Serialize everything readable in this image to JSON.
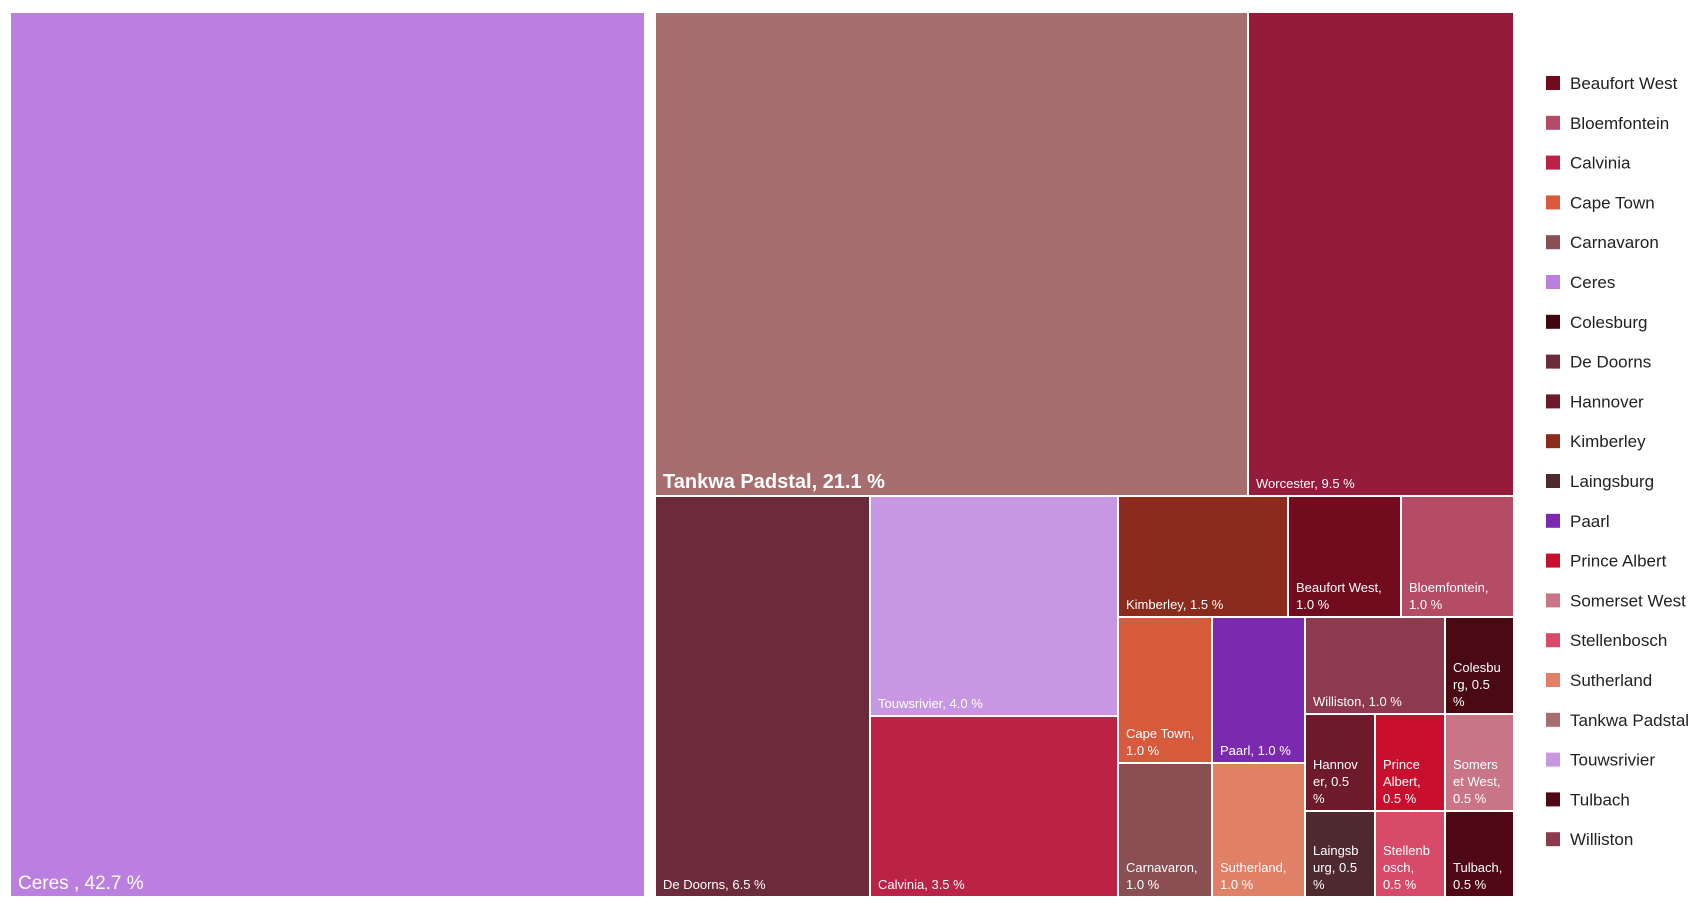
{
  "chart_data": {
    "type": "treemap",
    "title": "",
    "unit": "%",
    "items": [
      {
        "name": "Ceres",
        "value": 42.7,
        "label": [
          "Ceres , 42.7 %"
        ],
        "color": "#BB7FE0"
      },
      {
        "name": "Tankwa Padstal",
        "value": 21.1,
        "label": [
          "Tankwa Padstal, 21.1 %"
        ],
        "color": "#A66E6E"
      },
      {
        "name": "Worcester",
        "value": 9.5,
        "label": [
          "Worcester, 9.5 %"
        ],
        "color": "#941B3A"
      },
      {
        "name": "De Doorns",
        "value": 6.5,
        "label": [
          "De Doorns, 6.5 %"
        ],
        "color": "#6B2B3B"
      },
      {
        "name": "Touwsrivier",
        "value": 4.0,
        "label": [
          "Touwsrivier, 4.0 %"
        ],
        "color": "#C897E2"
      },
      {
        "name": "Calvinia",
        "value": 3.5,
        "label": [
          "Calvinia, 3.5 %"
        ],
        "color": "#BA2246"
      },
      {
        "name": "Kimberley",
        "value": 1.5,
        "label": [
          "Kimberley, 1.5 %"
        ],
        "color": "#8A2B1E"
      },
      {
        "name": "Beaufort West",
        "value": 1.0,
        "label": [
          "Beaufort West,",
          "1.0 %"
        ],
        "color": "#710C1E"
      },
      {
        "name": "Bloemfontein",
        "value": 1.0,
        "label": [
          "Bloemfontein,",
          "1.0 %"
        ],
        "color": "#B44C66"
      },
      {
        "name": "Cape Town",
        "value": 1.0,
        "label": [
          "Cape Town,",
          "1.0 %"
        ],
        "color": "#D85A3C"
      },
      {
        "name": "Paarl",
        "value": 1.0,
        "label": [
          "Paarl, 1.0 %"
        ],
        "color": "#7B2AB0"
      },
      {
        "name": "Williston",
        "value": 1.0,
        "label": [
          "Williston, 1.0 %"
        ],
        "color": "#8E3A4E"
      },
      {
        "name": "Colesburg",
        "value": 0.5,
        "label": [
          "Colesbu",
          "rg, 0.5",
          "%"
        ],
        "color": "#4A0A14"
      },
      {
        "name": "Carnavaron",
        "value": 1.0,
        "label": [
          "Carnavaron,",
          "1.0 %"
        ],
        "color": "#8A4F52"
      },
      {
        "name": "Sutherland",
        "value": 1.0,
        "label": [
          "Sutherland,",
          "1.0 %"
        ],
        "color": "#E08066"
      },
      {
        "name": "Hannover",
        "value": 0.5,
        "label": [
          "Hannov",
          "er, 0.5",
          "%"
        ],
        "color": "#6D1A2A"
      },
      {
        "name": "Prince Albert",
        "value": 0.5,
        "label": [
          "Prince",
          "Albert,",
          "0.5 %"
        ],
        "color": "#C8102E"
      },
      {
        "name": "Somerset West",
        "value": 0.5,
        "label": [
          "Somers",
          "et West,",
          "0.5 %"
        ],
        "color": "#C97585"
      },
      {
        "name": "Laingsburg",
        "value": 0.5,
        "label": [
          "Laingsb",
          "urg, 0.5",
          "%"
        ],
        "color": "#4E2A30"
      },
      {
        "name": "Stellenbosch",
        "value": 0.5,
        "label": [
          "Stellenb",
          "osch,",
          "0.5 %"
        ],
        "color": "#D84A6A"
      },
      {
        "name": "Tulbach",
        "value": 0.5,
        "label": [
          "Tulbach,",
          "0.5 %"
        ],
        "color": "#4F0814"
      }
    ],
    "legend": {
      "position": "right",
      "entries": [
        {
          "label": "Beaufort West",
          "color": "#710C1E"
        },
        {
          "label": "Bloemfontein",
          "color": "#B44C66"
        },
        {
          "label": "Calvinia",
          "color": "#BA2246"
        },
        {
          "label": "Cape Town",
          "color": "#D85A3C"
        },
        {
          "label": "Carnavaron",
          "color": "#8A4F52"
        },
        {
          "label": "Ceres",
          "color": "#BB7FE0"
        },
        {
          "label": "Colesburg",
          "color": "#3D0610"
        },
        {
          "label": "De Doorns",
          "color": "#6B2B3B"
        },
        {
          "label": "Hannover",
          "color": "#6D1A2A"
        },
        {
          "label": "Kimberley",
          "color": "#8A2B1E"
        },
        {
          "label": "Laingsburg",
          "color": "#4E2A30"
        },
        {
          "label": "Paarl",
          "color": "#7B2AB0"
        },
        {
          "label": "Prince Albert",
          "color": "#C8102E"
        },
        {
          "label": "Somerset West",
          "color": "#C97585"
        },
        {
          "label": "Stellenbosch",
          "color": "#D84A6A"
        },
        {
          "label": "Sutherland",
          "color": "#E08066"
        },
        {
          "label": "Tankwa Padstal",
          "color": "#A66E6E"
        },
        {
          "label": "Touwsrivier",
          "color": "#C897E2"
        },
        {
          "label": "Tulbach",
          "color": "#4F0814"
        },
        {
          "label": "Williston",
          "color": "#8E3A4E"
        }
      ]
    }
  }
}
